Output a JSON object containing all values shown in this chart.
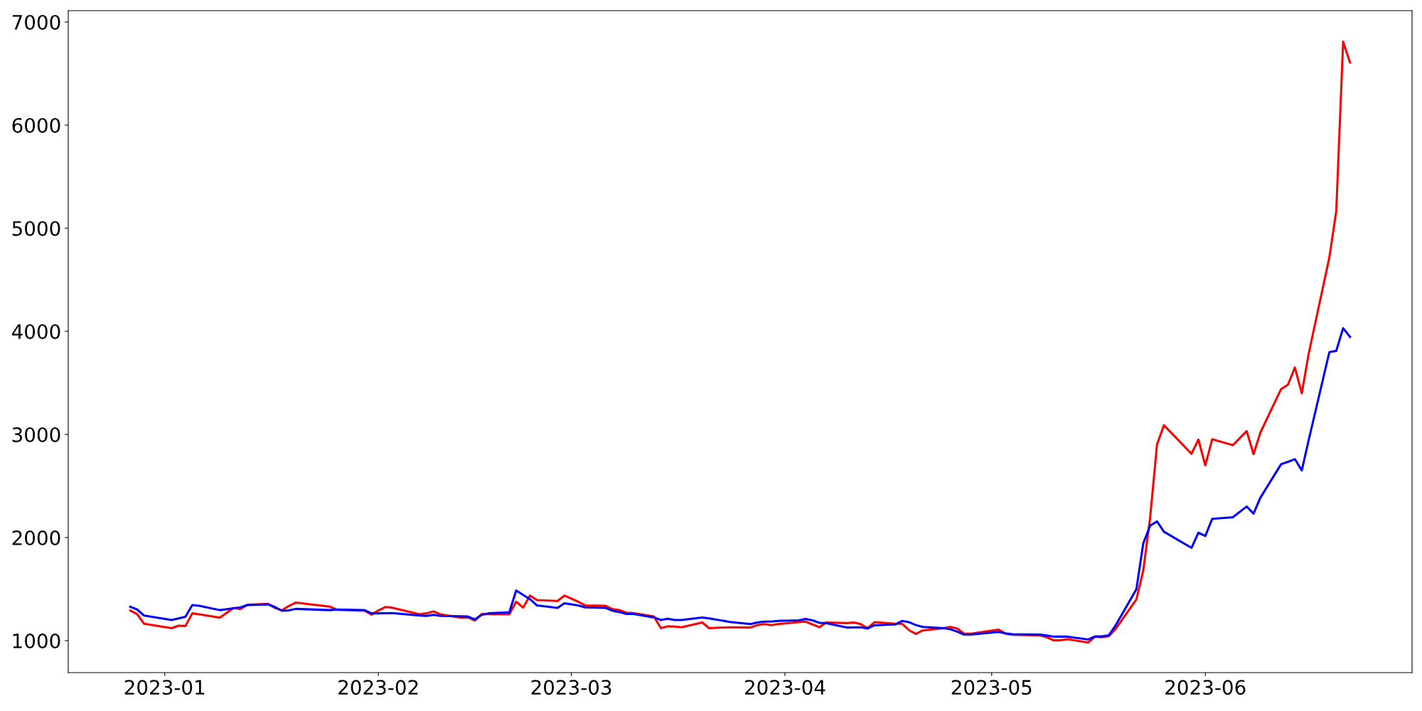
{
  "chart_data": {
    "type": "line",
    "x": [
      "2022-12-27",
      "2022-12-28",
      "2022-12-29",
      "2023-01-02",
      "2023-01-03",
      "2023-01-04",
      "2023-01-05",
      "2023-01-06",
      "2023-01-09",
      "2023-01-11",
      "2023-01-12",
      "2023-01-13",
      "2023-01-16",
      "2023-01-17",
      "2023-01-18",
      "2023-01-19",
      "2023-01-20",
      "2023-01-25",
      "2023-01-26",
      "2023-01-30",
      "2023-01-31",
      "2023-02-01",
      "2023-02-02",
      "2023-02-03",
      "2023-02-07",
      "2023-02-08",
      "2023-02-09",
      "2023-02-10",
      "2023-02-13",
      "2023-02-14",
      "2023-02-15",
      "2023-02-16",
      "2023-02-17",
      "2023-02-20",
      "2023-02-21",
      "2023-02-22",
      "2023-02-23",
      "2023-02-24",
      "2023-02-27",
      "2023-02-28",
      "2023-03-02",
      "2023-03-03",
      "2023-03-06",
      "2023-03-07",
      "2023-03-08",
      "2023-03-09",
      "2023-03-10",
      "2023-03-13",
      "2023-03-14",
      "2023-03-15",
      "2023-03-16",
      "2023-03-17",
      "2023-03-20",
      "2023-03-21",
      "2023-03-24",
      "2023-03-27",
      "2023-03-28",
      "2023-03-29",
      "2023-03-30",
      "2023-03-31",
      "2023-04-03",
      "2023-04-04",
      "2023-04-05",
      "2023-04-06",
      "2023-04-07",
      "2023-04-10",
      "2023-04-11",
      "2023-04-12",
      "2023-04-13",
      "2023-04-14",
      "2023-04-17",
      "2023-04-18",
      "2023-04-19",
      "2023-04-20",
      "2023-04-21",
      "2023-04-24",
      "2023-04-25",
      "2023-04-26",
      "2023-04-27",
      "2023-04-28",
      "2023-05-02",
      "2023-05-03",
      "2023-05-04",
      "2023-05-08",
      "2023-05-09",
      "2023-05-10",
      "2023-05-11",
      "2023-05-12",
      "2023-05-15",
      "2023-05-16",
      "2023-05-17",
      "2023-05-18",
      "2023-05-19",
      "2023-05-22",
      "2023-05-23",
      "2023-05-24",
      "2023-05-25",
      "2023-05-26",
      "2023-05-30",
      "2023-05-31",
      "2023-06-01",
      "2023-06-02",
      "2023-06-05",
      "2023-06-07",
      "2023-06-08",
      "2023-06-09",
      "2023-06-12",
      "2023-06-13",
      "2023-06-14",
      "2023-06-15",
      "2023-06-16",
      "2023-06-19",
      "2023-06-20",
      "2023-06-21",
      "2023-06-22"
    ],
    "series": [
      {
        "color": "#ff0000",
        "values": [
          1293,
          1256,
          1164,
          1121,
          1145,
          1142,
          1265,
          1256,
          1222,
          1317,
          1305,
          1348,
          1357,
          1317,
          1293,
          1336,
          1369,
          1329,
          1299,
          1290,
          1253,
          1293,
          1326,
          1320,
          1256,
          1265,
          1283,
          1256,
          1222,
          1225,
          1194,
          1259,
          1257,
          1256,
          1378,
          1320,
          1437,
          1394,
          1385,
          1437,
          1378,
          1342,
          1338,
          1305,
          1296,
          1271,
          1268,
          1234,
          1121,
          1139,
          1136,
          1130,
          1176,
          1121,
          1130,
          1127,
          1151,
          1160,
          1151,
          1160,
          1179,
          1185,
          1157,
          1130,
          1176,
          1170,
          1176,
          1160,
          1121,
          1179,
          1164,
          1164,
          1102,
          1065,
          1099,
          1121,
          1133,
          1118,
          1068,
          1068,
          1107,
          1068,
          1058,
          1050,
          1033,
          1003,
          1003,
          1014,
          981,
          1039,
          1033,
          1044,
          1115,
          1400,
          1680,
          2197,
          2904,
          3089,
          2812,
          2950,
          2700,
          2953,
          2896,
          3032,
          2809,
          3019,
          3440,
          3483,
          3649,
          3399,
          3783,
          4716,
          5163,
          6809,
          6607
        ]
      },
      {
        "color": "#0000ff",
        "values": [
          1329,
          1302,
          1243,
          1200,
          1216,
          1231,
          1345,
          1338,
          1296,
          1314,
          1323,
          1345,
          1351,
          1326,
          1290,
          1293,
          1308,
          1296,
          1302,
          1296,
          1265,
          1265,
          1266,
          1268,
          1243,
          1240,
          1250,
          1240,
          1237,
          1234,
          1206,
          1250,
          1265,
          1274,
          1486,
          1443,
          1403,
          1342,
          1317,
          1363,
          1342,
          1323,
          1317,
          1290,
          1277,
          1259,
          1259,
          1225,
          1200,
          1213,
          1200,
          1200,
          1225,
          1216,
          1182,
          1160,
          1176,
          1185,
          1185,
          1191,
          1197,
          1210,
          1197,
          1173,
          1170,
          1127,
          1128,
          1130,
          1118,
          1149,
          1157,
          1191,
          1179,
          1151,
          1133,
          1121,
          1111,
          1087,
          1059,
          1059,
          1085,
          1071,
          1063,
          1058,
          1050,
          1039,
          1039,
          1039,
          1011,
          1041,
          1041,
          1052,
          1150,
          1498,
          1944,
          2116,
          2156,
          2056,
          1900,
          2047,
          2015,
          2181,
          2197,
          2301,
          2232,
          2387,
          2711,
          2735,
          2760,
          2651,
          2945,
          3798,
          3810,
          4030,
          3946
        ]
      }
    ],
    "xlim": [
      "2022-12-18",
      "2023-07-01"
    ],
    "xticks": [
      {
        "value": "2023-01-01",
        "label": "2023-01"
      },
      {
        "value": "2023-02-01",
        "label": "2023-02"
      },
      {
        "value": "2023-03-01",
        "label": "2023-03"
      },
      {
        "value": "2023-04-01",
        "label": "2023-04"
      },
      {
        "value": "2023-05-01",
        "label": "2023-05"
      },
      {
        "value": "2023-06-01",
        "label": "2023-06"
      }
    ],
    "ylim": [
      690,
      7110
    ],
    "yticks": [
      1000,
      2000,
      3000,
      4000,
      5000,
      6000,
      7000
    ],
    "grid": false,
    "line_style": "solid",
    "marker": "none"
  }
}
